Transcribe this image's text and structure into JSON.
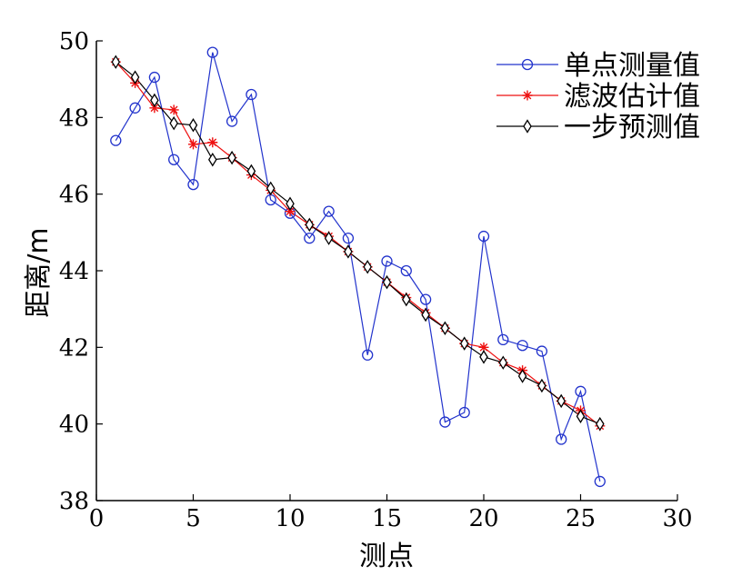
{
  "chart_data": {
    "type": "line",
    "xlabel": "测点",
    "ylabel": "距离/m",
    "xlim": [
      0,
      30
    ],
    "ylim": [
      38,
      50
    ],
    "xticks": [
      0,
      5,
      10,
      15,
      20,
      25,
      30
    ],
    "yticks": [
      38,
      40,
      42,
      44,
      46,
      48,
      50
    ],
    "grid": false,
    "legend_position": "top-right",
    "x": [
      1,
      2,
      3,
      4,
      5,
      6,
      7,
      8,
      9,
      10,
      11,
      12,
      13,
      14,
      15,
      16,
      17,
      18,
      19,
      20,
      21,
      22,
      23,
      24,
      25,
      26
    ],
    "series": [
      {
        "name": "单点测量值",
        "color": "#2233cc",
        "marker": "circle",
        "values": [
          47.4,
          48.25,
          49.05,
          46.9,
          46.25,
          49.7,
          47.9,
          48.6,
          45.85,
          45.5,
          44.85,
          45.55,
          44.85,
          41.8,
          44.25,
          44.0,
          43.25,
          40.05,
          40.3,
          44.9,
          42.2,
          42.05,
          41.9,
          39.6,
          40.85,
          38.5
        ]
      },
      {
        "name": "滤波估计值",
        "color": "#ee1111",
        "marker": "star",
        "values": [
          49.45,
          48.9,
          48.25,
          48.2,
          47.3,
          47.35,
          46.95,
          46.5,
          46.1,
          45.55,
          45.2,
          44.9,
          44.5,
          44.1,
          43.7,
          43.3,
          42.9,
          42.5,
          42.1,
          42.0,
          41.6,
          41.4,
          41.0,
          40.6,
          40.35,
          39.95
        ]
      },
      {
        "name": "一步预测值",
        "color": "#000000",
        "marker": "diamond",
        "values": [
          49.45,
          49.05,
          48.45,
          47.85,
          47.8,
          46.9,
          46.95,
          46.6,
          46.15,
          45.75,
          45.2,
          44.85,
          44.5,
          44.1,
          43.7,
          43.25,
          42.85,
          42.5,
          42.1,
          41.75,
          41.6,
          41.25,
          41.0,
          40.6,
          40.2,
          40.0
        ]
      }
    ]
  }
}
